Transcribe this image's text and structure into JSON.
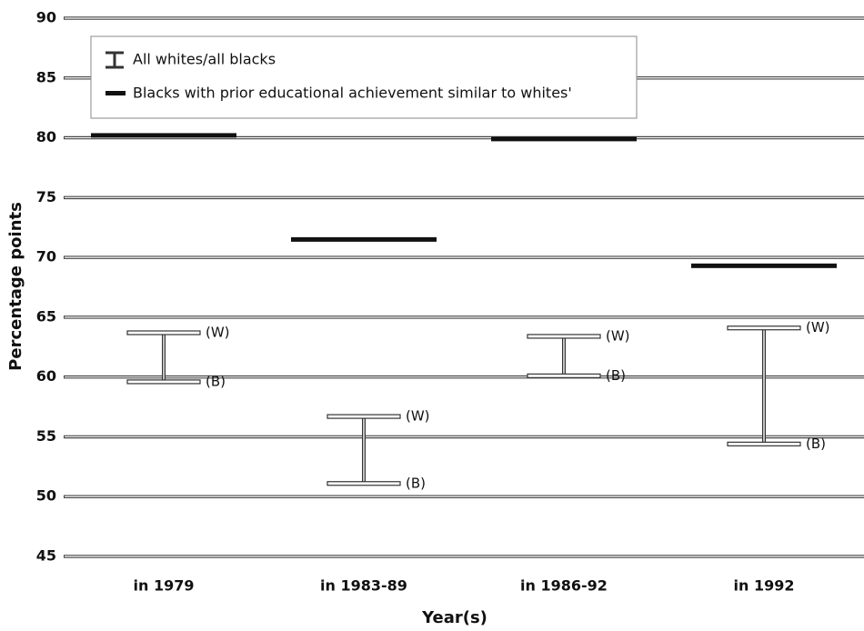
{
  "chart_data": {
    "type": "range",
    "x_label": "Year(s)",
    "y_label": "Percentage points",
    "categories": [
      "in 1979",
      "in 1983-89",
      "in 1986-92",
      "in 1992"
    ],
    "series": [
      {
        "name": "All whites/all blacks",
        "color": "#333333",
        "high_label": "(W)",
        "low_label": "(B)",
        "high": [
          63.7,
          56.7,
          63.4,
          64.1
        ],
        "low": [
          59.6,
          51.1,
          60.1,
          54.4
        ]
      },
      {
        "name": "Blacks with prior educational achievement similar to whites'",
        "color": "#111111",
        "values": [
          80.2,
          71.5,
          79.9,
          69.3
        ]
      }
    ],
    "ylim": [
      45,
      90
    ],
    "yticks": [
      45,
      50,
      55,
      60,
      65,
      70,
      75,
      80,
      85,
      90
    ],
    "grid": true,
    "legend": "upper left"
  }
}
